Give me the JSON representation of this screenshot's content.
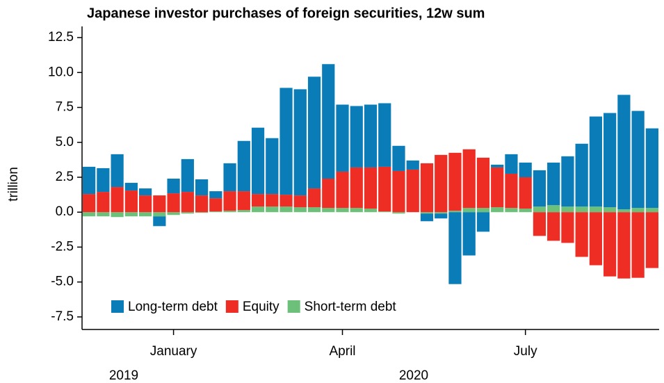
{
  "chart_data": {
    "type": "bar",
    "stacked": true,
    "title": "Japanese investor purchases of foreign securities, 12w sum",
    "ylabel": "trillion",
    "categories": [
      null,
      null,
      null,
      null,
      null,
      null,
      "January",
      null,
      null,
      null,
      null,
      null,
      null,
      null,
      null,
      null,
      null,
      null,
      "April",
      null,
      null,
      null,
      null,
      null,
      null,
      null,
      null,
      null,
      null,
      null,
      null,
      "July",
      null,
      null,
      null,
      null,
      null,
      null,
      null,
      null,
      null
    ],
    "year_labels": [
      "2019",
      "2020"
    ],
    "series": [
      {
        "name": "Short-term debt",
        "color": "#6cc07a",
        "values": [
          -0.3,
          -0.3,
          -0.35,
          -0.3,
          -0.3,
          -0.3,
          -0.2,
          -0.1,
          -0.05,
          0.05,
          0.1,
          0.15,
          0.4,
          0.4,
          0.4,
          0.35,
          0.35,
          0.3,
          0.3,
          0.3,
          0.25,
          0.05,
          -0.1,
          0.0,
          -0.1,
          -0.1,
          0.1,
          0.3,
          0.3,
          0.35,
          0.3,
          0.25,
          0.4,
          0.5,
          0.4,
          0.4,
          0.4,
          0.35,
          0.2,
          0.3,
          0.3
        ]
      },
      {
        "name": "Equity",
        "color": "#ee2d24",
        "values": [
          1.3,
          1.45,
          1.8,
          1.55,
          1.2,
          1.2,
          1.35,
          1.45,
          1.2,
          0.95,
          1.4,
          1.35,
          0.9,
          0.9,
          0.85,
          0.85,
          1.35,
          2.1,
          2.6,
          2.9,
          2.95,
          3.2,
          2.95,
          3.05,
          3.5,
          4.1,
          4.15,
          4.2,
          3.6,
          2.85,
          2.45,
          2.25,
          -1.7,
          -2.05,
          -2.2,
          -3.2,
          -3.8,
          -4.6,
          -4.75,
          -4.7,
          -4.0
        ]
      },
      {
        "name": "Long-term debt",
        "color": "#0a7db8",
        "values": [
          1.95,
          1.7,
          2.35,
          0.55,
          0.5,
          -0.7,
          1.05,
          2.35,
          1.15,
          0.5,
          2.0,
          3.6,
          4.75,
          4.0,
          7.65,
          7.6,
          8.0,
          8.2,
          4.8,
          4.4,
          4.5,
          4.55,
          1.8,
          0.65,
          -0.55,
          -0.35,
          -5.15,
          -3.1,
          -1.4,
          0.2,
          1.4,
          1.05,
          2.6,
          3.05,
          3.6,
          4.5,
          6.45,
          6.75,
          8.2,
          6.95,
          5.7
        ]
      }
    ],
    "legend_order": [
      2,
      1,
      0
    ],
    "ylim": [
      -8.4,
      13.3
    ],
    "yticks": [
      -7.5,
      {
        "value": -5,
        "label": "-5.0"
      },
      -2.5,
      {
        "value": 0,
        "label": "0.0"
      },
      2.5,
      {
        "value": 5,
        "label": "5.0"
      },
      7.5,
      {
        "value": 10,
        "label": "10.0"
      },
      12.5
    ]
  }
}
